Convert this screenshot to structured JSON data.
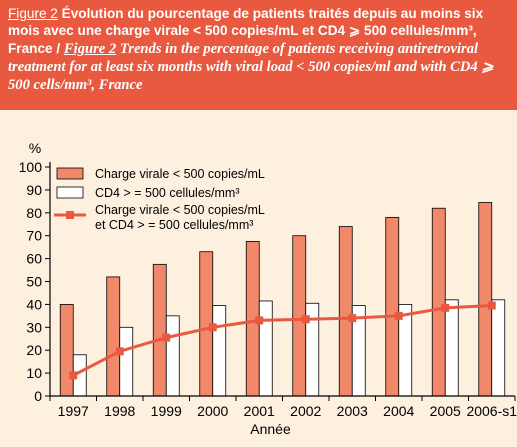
{
  "header": {
    "figure_label_fr": "Figure 2",
    "title_fr": "Évolution du pourcentage de patients traités depuis au moins six mois avec une charge virale < 500 copies/mL et CD4 ⩾ 500 cellules/mm³, France /",
    "figure_label_en": "Figure 2",
    "title_en": "Trends in the percentage of patients receiving antiretroviral treatment for at least six months with viral load < 500 copies/ml and with CD4 ⩾ 500 cells/mm³, France"
  },
  "colors": {
    "header_bg": "#e9593f",
    "page_bg": "#fdf0df",
    "bar_viral": "#f1886a",
    "bar_cd4": "#ffffff",
    "line": "#e9593f"
  },
  "chart_data": {
    "type": "bar",
    "categories": [
      "1997",
      "1998",
      "1999",
      "2000",
      "2001",
      "2002",
      "2003",
      "2004",
      "2005",
      "2006-s1"
    ],
    "series": [
      {
        "name": "Charge virale < 500 copies/mL",
        "type": "bar",
        "values": [
          40,
          52,
          57.5,
          63,
          67.5,
          70,
          74,
          78,
          82,
          84.5
        ]
      },
      {
        "name": "CD4 > = 500 cellules/mm³",
        "type": "bar",
        "values": [
          18,
          30,
          35,
          39.5,
          41.5,
          40.5,
          39.5,
          40,
          42,
          42
        ]
      },
      {
        "name": "Charge virale < 500 copies/mL et CD4 > = 500 cellules/mm³",
        "type": "line",
        "values": [
          9,
          19.5,
          25.5,
          30,
          33,
          33.5,
          34,
          35,
          38.5,
          39.5
        ]
      }
    ],
    "ylabel": "%",
    "xlabel": "Année",
    "ylim": [
      0,
      100
    ],
    "yticks": [
      0,
      10,
      20,
      30,
      40,
      50,
      60,
      70,
      80,
      90,
      100
    ],
    "grid": false,
    "legend_position": "top-left"
  }
}
